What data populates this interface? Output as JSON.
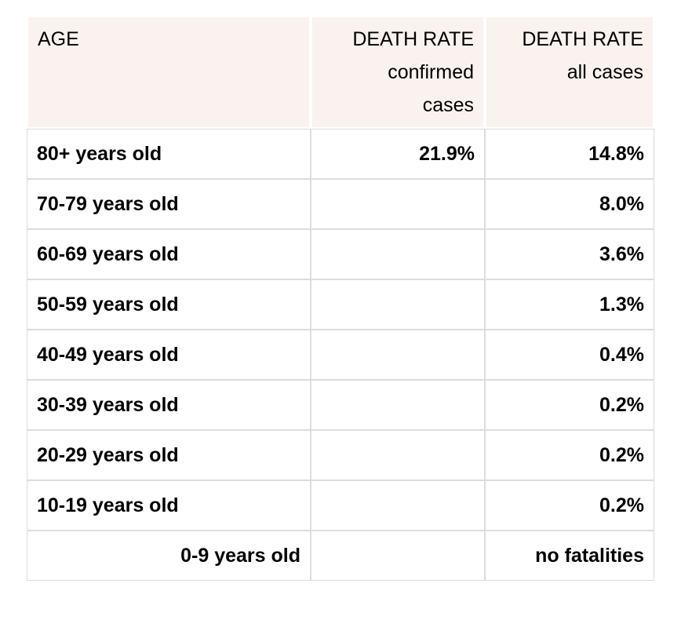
{
  "colors": {
    "header_bg": "#f9f2ef",
    "grid_line": "#dcdcdc",
    "text": "#000000",
    "page_bg": "#ffffff"
  },
  "chart_data": {
    "type": "table",
    "header": {
      "age": "AGE",
      "confirmed": {
        "line1": "DEATH RATE",
        "line2": "confirmed",
        "line3": "cases"
      },
      "all": {
        "line1": "DEATH RATE",
        "line2": "all cases"
      }
    },
    "rows": [
      {
        "age": "80+ years old",
        "confirmed": "21.9%",
        "all": "14.8%"
      },
      {
        "age": "70-79 years old",
        "confirmed": "",
        "all": "8.0%"
      },
      {
        "age": "60-69 years old",
        "confirmed": "",
        "all": "3.6%"
      },
      {
        "age": "50-59 years old",
        "confirmed": "",
        "all": "1.3%"
      },
      {
        "age": "40-49 years old",
        "confirmed": "",
        "all": "0.4%"
      },
      {
        "age": "30-39 years old",
        "confirmed": "",
        "all": "0.2%"
      },
      {
        "age": "20-29 years old",
        "confirmed": "",
        "all": "0.2%"
      },
      {
        "age": "10-19 years old",
        "confirmed": "",
        "all": "0.2%"
      },
      {
        "age": "0-9 years old",
        "confirmed": "",
        "all": "no fatalities"
      }
    ]
  }
}
